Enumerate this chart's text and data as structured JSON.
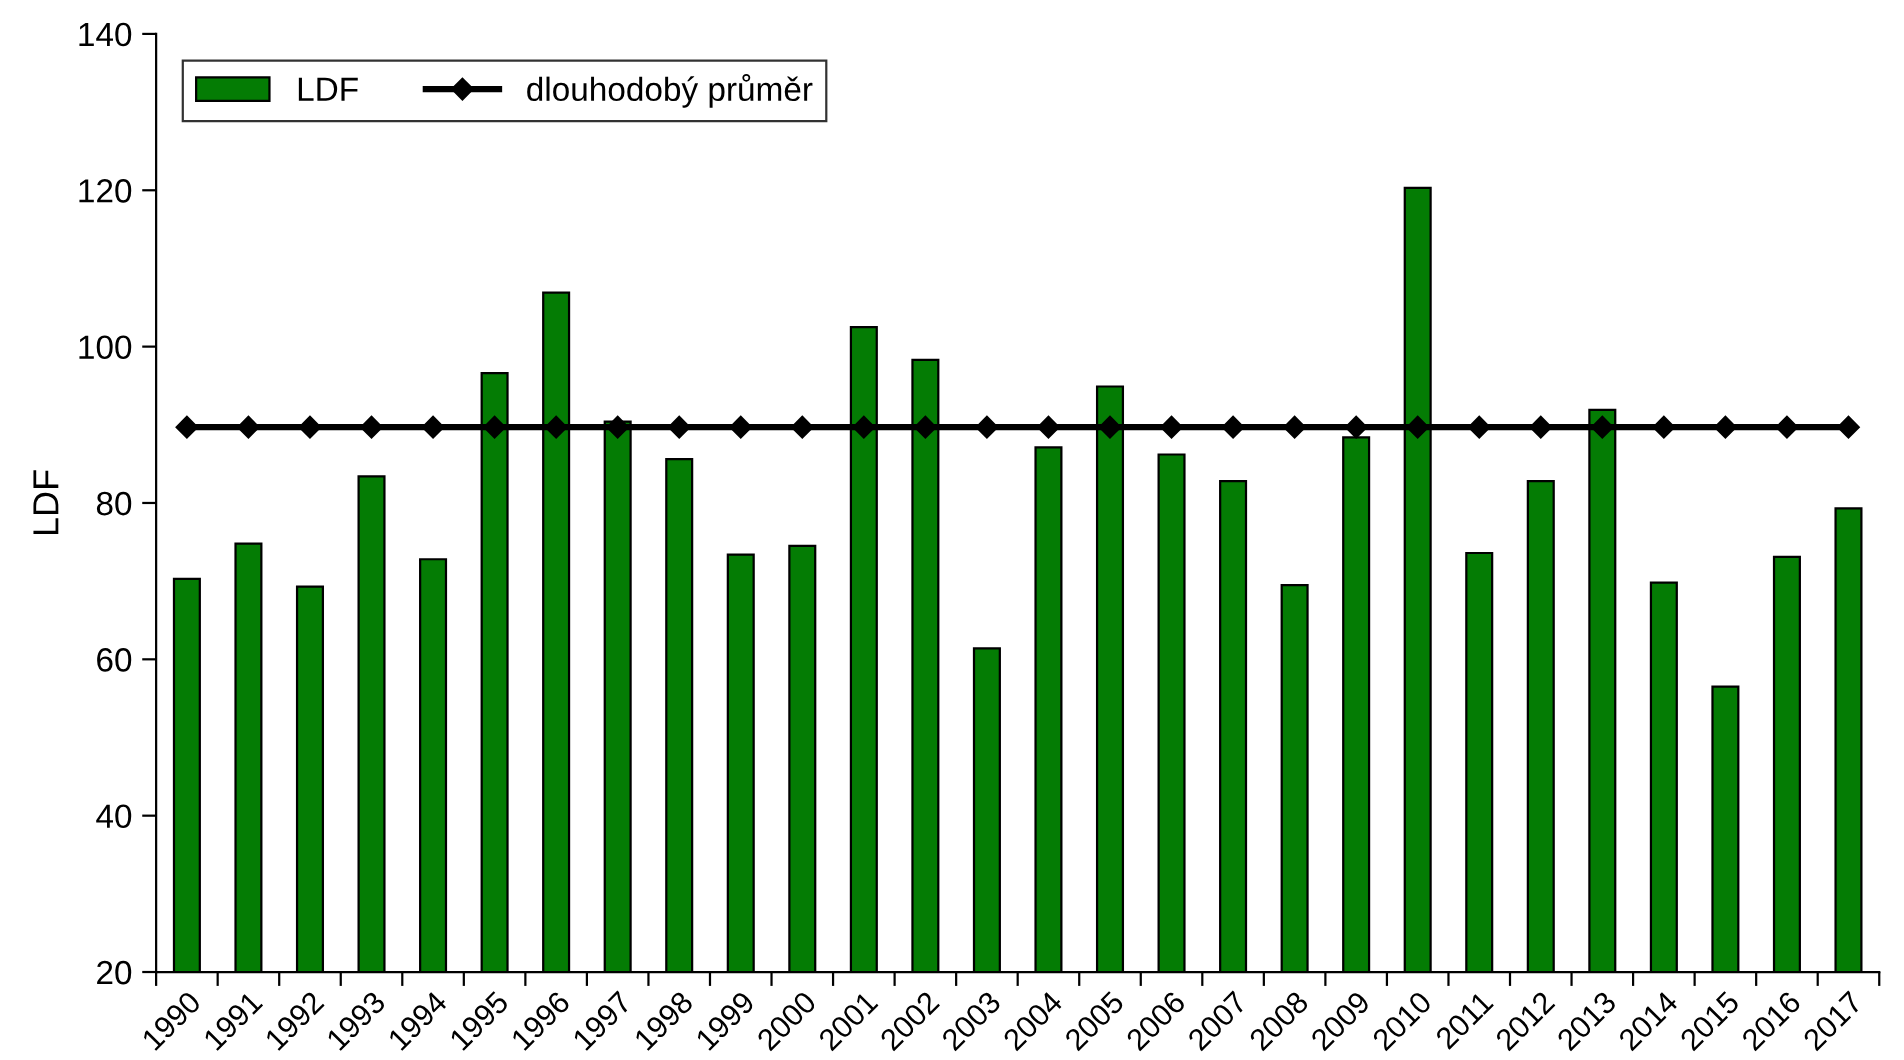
{
  "chart_data": {
    "type": "bar",
    "ylabel": "LDF",
    "categories": [
      "1990",
      "1991",
      "1992",
      "1993",
      "1994",
      "1995",
      "1996",
      "1997",
      "1998",
      "1999",
      "2000",
      "2001",
      "2002",
      "2003",
      "2004",
      "2005",
      "2006",
      "2007",
      "2008",
      "2009",
      "2010",
      "2011",
      "2012",
      "2013",
      "2014",
      "2015",
      "2016",
      "2017"
    ],
    "series": [
      {
        "name": "LDF",
        "color": "#047c04",
        "values": [
          70.3,
          74.8,
          69.3,
          83.4,
          72.8,
          96.6,
          106.9,
          90.4,
          85.6,
          73.4,
          74.5,
          102.5,
          98.3,
          61.4,
          87.1,
          94.9,
          86.2,
          82.8,
          69.5,
          88.4,
          120.3,
          73.6,
          82.8,
          91.9,
          69.8,
          56.5,
          73.1,
          79.3
        ]
      },
      {
        "name": "dlouhodobý průměr",
        "type": "line",
        "color": "#000000",
        "marker": "diamond",
        "values": [
          89.7,
          89.7,
          89.7,
          89.7,
          89.7,
          89.7,
          89.7,
          89.7,
          89.7,
          89.7,
          89.7,
          89.7,
          89.7,
          89.7,
          89.7,
          89.7,
          89.7,
          89.7,
          89.7,
          89.7,
          89.7,
          89.7,
          89.7,
          89.7,
          89.7,
          89.7,
          89.7,
          89.7
        ]
      }
    ],
    "ylim": [
      20,
      140
    ],
    "yticks": [
      20,
      40,
      60,
      80,
      100,
      120,
      140
    ],
    "grid": false,
    "legend": "top left"
  }
}
